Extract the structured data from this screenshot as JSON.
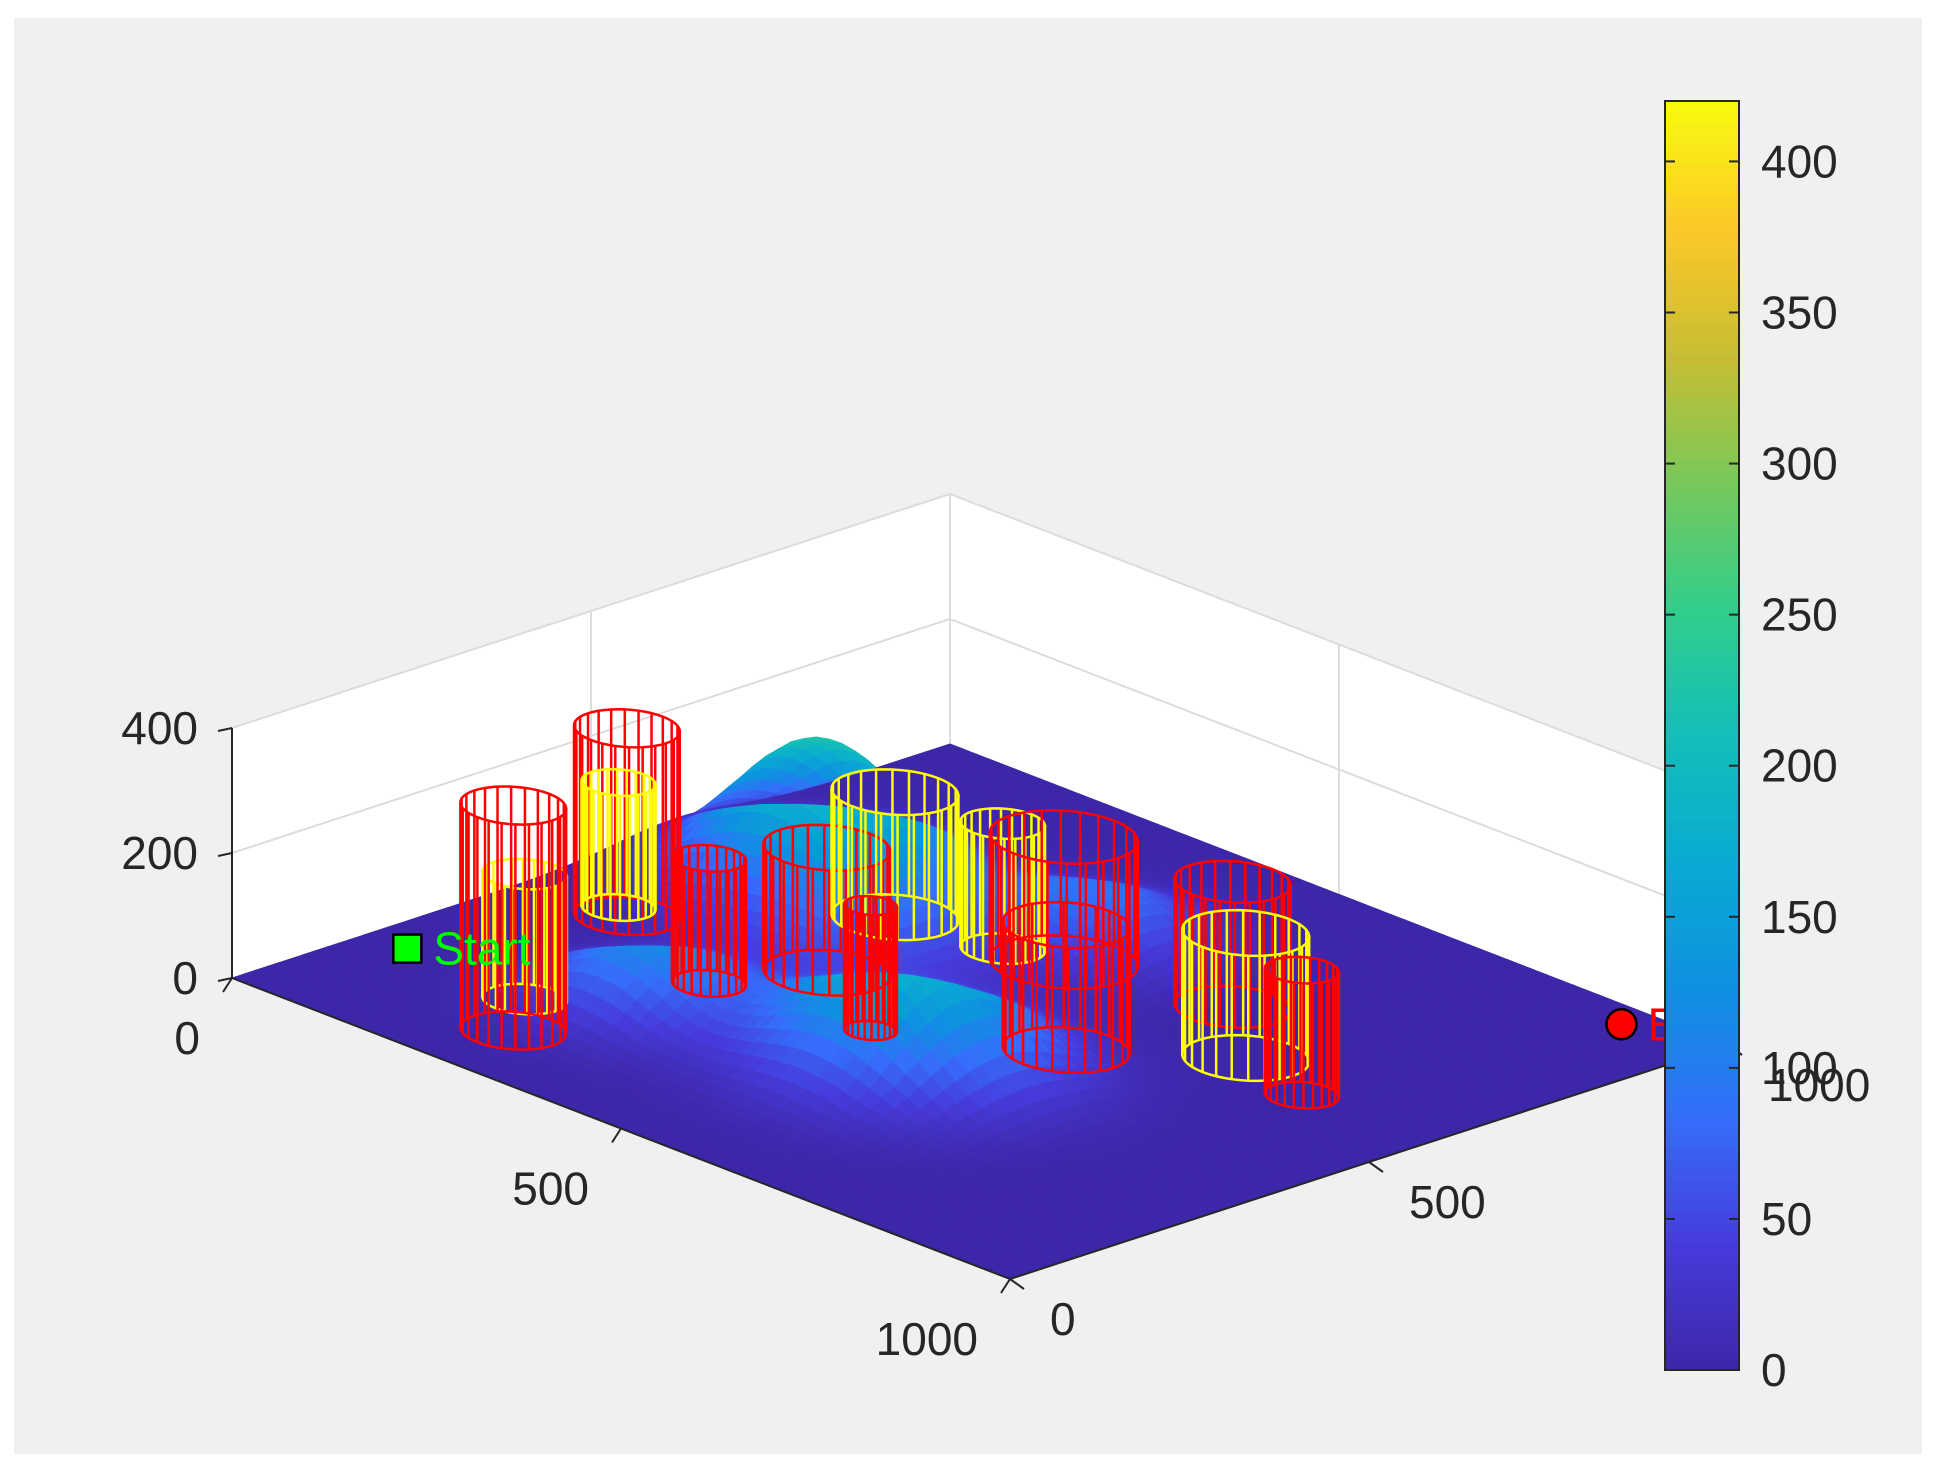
{
  "chart_data": {
    "type": "surface",
    "title": "",
    "xlabel": "",
    "ylabel": "",
    "zlabel": "",
    "xlim": [
      0,
      1000
    ],
    "ylim": [
      0,
      1000
    ],
    "zlim": [
      0,
      400
    ],
    "x_ticks": [
      "0",
      "500",
      "1000"
    ],
    "y_ticks": [
      "0",
      "500",
      "1000"
    ],
    "z_ticks": [
      "0",
      "200",
      "400"
    ],
    "grid": true,
    "colormap": "parula",
    "colorbar": {
      "location": "right",
      "range": [
        0,
        420
      ],
      "ticks": [
        "0",
        "50",
        "100",
        "150",
        "200",
        "250",
        "300",
        "350",
        "400"
      ]
    },
    "terrain_peaks": [
      {
        "x": 560,
        "y": 330,
        "height": 200,
        "radius": 130
      },
      {
        "x": 180,
        "y": 620,
        "height": 230,
        "radius": 120
      },
      {
        "x": 300,
        "y": 250,
        "height": 120,
        "radius": 100
      },
      {
        "x": 320,
        "y": 520,
        "height": 80,
        "radius": 110
      },
      {
        "x": 440,
        "y": 720,
        "height": 90,
        "radius": 110
      }
    ],
    "obstacles": [
      {
        "color": "red",
        "x": 120,
        "y": 420,
        "radius": 50,
        "z_top": 300
      },
      {
        "color": "yellow",
        "x": 100,
        "y": 430,
        "radius": 35,
        "z_top": 200
      },
      {
        "color": "yellow",
        "x": 210,
        "y": 180,
        "radius": 40,
        "z_top": 200
      },
      {
        "color": "red",
        "x": 260,
        "y": 110,
        "radius": 50,
        "z_top": 360
      },
      {
        "color": "red",
        "x": 290,
        "y": 350,
        "radius": 35,
        "z_top": 200
      },
      {
        "color": "red",
        "x": 340,
        "y": 460,
        "radius": 60,
        "z_top": 200
      },
      {
        "color": "yellow",
        "x": 280,
        "y": 620,
        "radius": 60,
        "z_top": 200
      },
      {
        "color": "yellow",
        "x": 400,
        "y": 640,
        "radius": 40,
        "z_top": 200
      },
      {
        "color": "red",
        "x": 460,
        "y": 660,
        "radius": 70,
        "z_top": 200
      },
      {
        "color": "red",
        "x": 470,
        "y": 380,
        "radius": 25,
        "z_top": 200
      },
      {
        "color": "red",
        "x": 620,
        "y": 490,
        "radius": 60,
        "z_top": 200
      },
      {
        "color": "red",
        "x": 640,
        "y": 700,
        "radius": 55,
        "z_top": 200
      },
      {
        "color": "yellow",
        "x": 740,
        "y": 610,
        "radius": 60,
        "z_top": 200
      },
      {
        "color": "red",
        "x": 840,
        "y": 580,
        "radius": 35,
        "z_top": 200
      }
    ],
    "markers": [
      {
        "label": "Start",
        "shape": "square",
        "color": "#00ff00",
        "x": 50,
        "y": 190,
        "z": 0
      },
      {
        "label": "End",
        "shape": "circle",
        "color": "#ff0000",
        "x": 900,
        "y": 960,
        "z": 0
      }
    ]
  }
}
